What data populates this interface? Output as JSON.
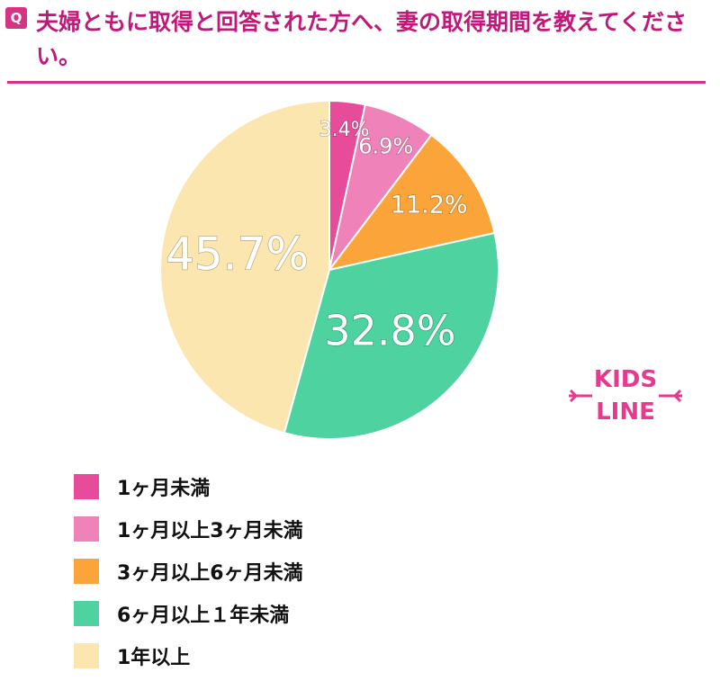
{
  "question": {
    "badge": "Q",
    "text": "夫婦ともに取得と回答された方へ、妻の取得期間を教えてください。"
  },
  "logo": {
    "line1": "KIDS",
    "line2": "LINE"
  },
  "colors": {
    "accent": "#d63384",
    "slices": [
      "#e74c9b",
      "#ef82b9",
      "#faa43a",
      "#4ed3a0",
      "#fae6ae"
    ],
    "logo": "#e8388f"
  },
  "chart_data": {
    "type": "pie",
    "categories": [
      "1ヶ月未満",
      "1ヶ月以上3ヶ月未満",
      "3ヶ月以上6ヶ月未満",
      "6ヶ月以上１年未満",
      "1年以上"
    ],
    "values": [
      3.4,
      6.9,
      11.2,
      32.8,
      45.7
    ],
    "value_labels": [
      "3.4%",
      "6.9%",
      "11.2%",
      "32.8%",
      "45.7%"
    ],
    "unit": "%",
    "start": "12 o'clock, clockwise",
    "legend_position": "bottom-left"
  }
}
